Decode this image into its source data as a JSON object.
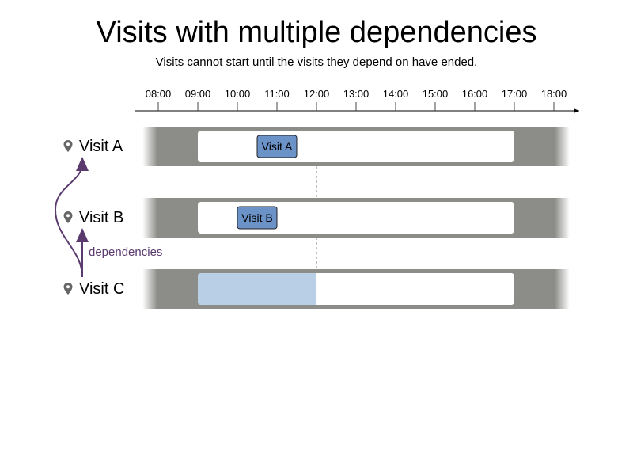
{
  "title": "Visits with multiple dependencies",
  "subtitle": "Visits cannot start until the visits they depend on have ended.",
  "time_axis": {
    "ticks": [
      "08:00",
      "09:00",
      "10:00",
      "11:00",
      "12:00",
      "13:00",
      "14:00",
      "15:00",
      "16:00",
      "17:00",
      "18:00"
    ]
  },
  "rows": [
    {
      "label": "Visit A",
      "icon": "location-pin-icon",
      "time_window": [
        "09:00",
        "17:00"
      ],
      "visit": {
        "label": "Visit A",
        "start": "10:30",
        "end": "11:30"
      }
    },
    {
      "label": "Visit B",
      "icon": "location-pin-icon",
      "time_window": [
        "09:00",
        "17:00"
      ],
      "visit": {
        "label": "Visit B",
        "start": "10:00",
        "end": "11:00"
      }
    },
    {
      "label": "Visit C",
      "icon": "location-pin-icon",
      "time_window": [
        "09:00",
        "17:00"
      ],
      "blocked_period": [
        "09:00",
        "12:00"
      ]
    }
  ],
  "dependency_marker_time": "12:00",
  "dependencies_label": "dependencies",
  "colors": {
    "band": "#8c8c88",
    "window": "#ffffff",
    "visit_fill": "#6b93c8",
    "blocked_fill": "#b8cfe6",
    "arrow": "#5b3a6e",
    "pin": "#666666"
  }
}
